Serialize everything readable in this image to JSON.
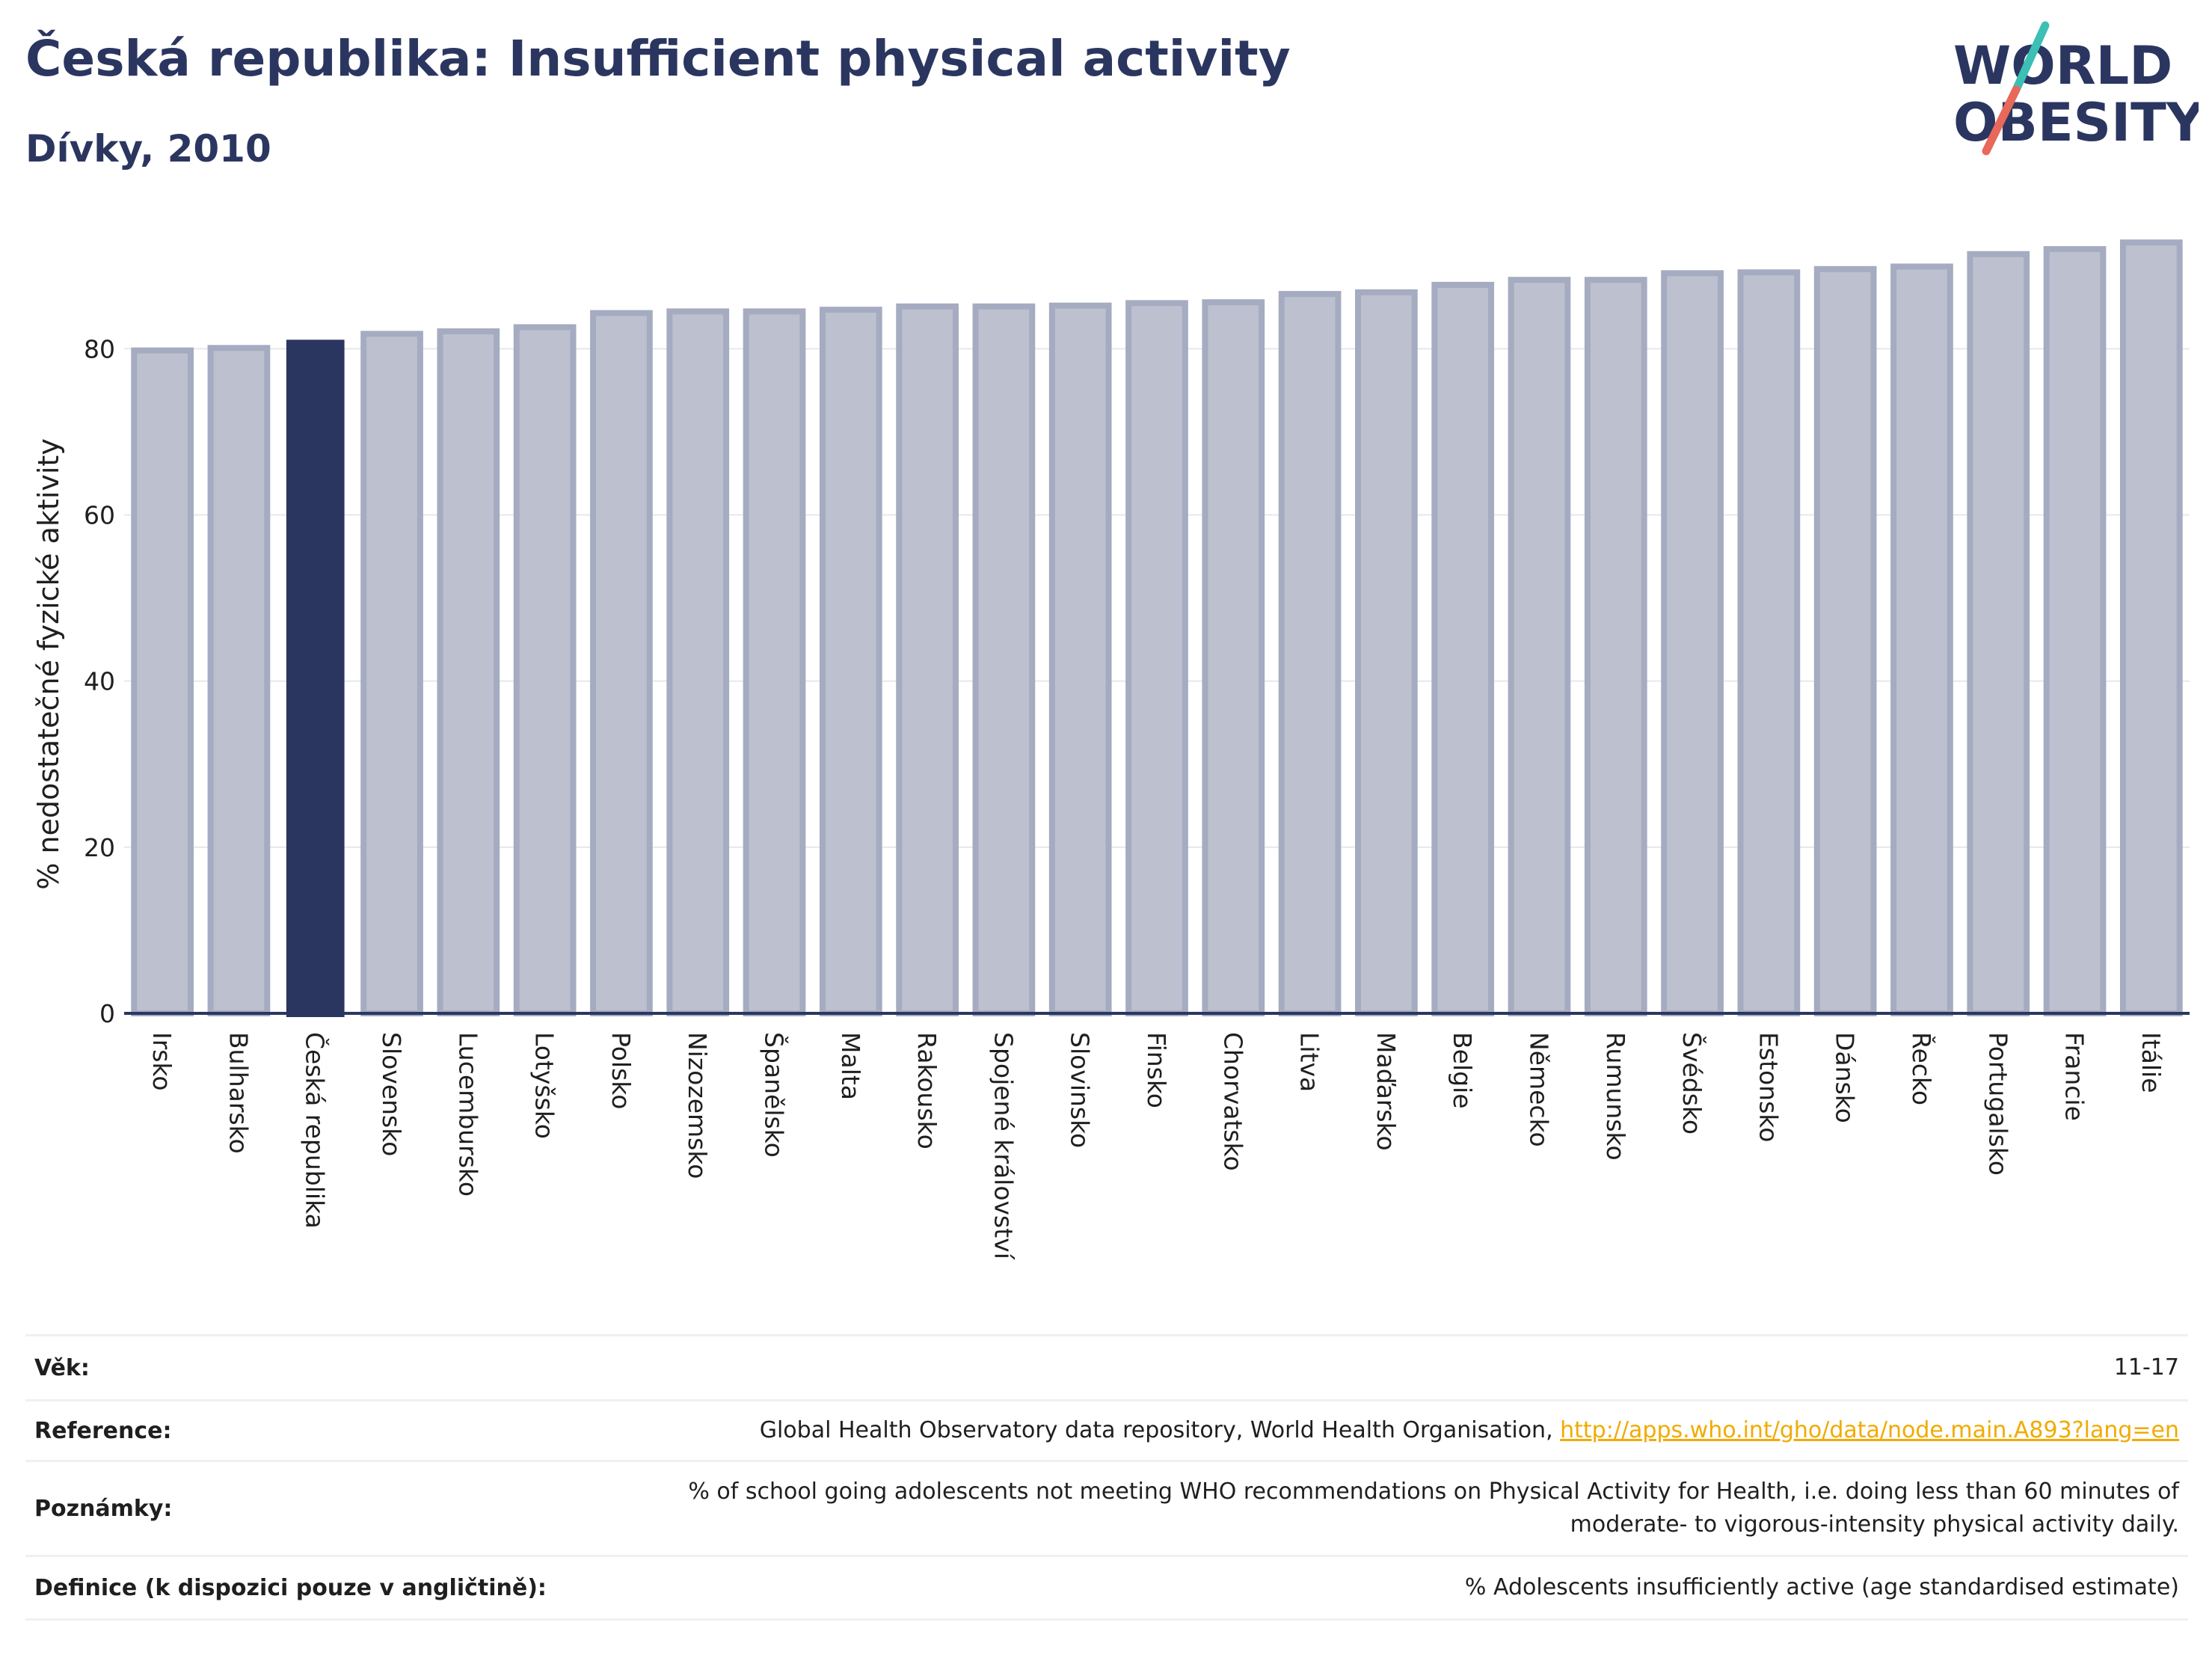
{
  "header": {
    "title": "Česká republika: Insufficient physical activity",
    "subtitle": "Dívky, 2010"
  },
  "logo": {
    "line1": "WORLD",
    "line2": "OBESITY"
  },
  "colors": {
    "navy": "#2b3660",
    "bar": "#bdc1cf",
    "bar_outline": "#a5abc0",
    "link": "#f0ab00",
    "logo_teal": "#3cbfb4",
    "logo_coral": "#e8685a"
  },
  "chart_data": {
    "type": "bar",
    "ylabel": "% nedostatečné fyzické aktivity",
    "ylim": [
      0,
      93
    ],
    "yticks": [
      0,
      20,
      40,
      60,
      80
    ],
    "grid": true,
    "highlight": "Česká republika",
    "categories": [
      "Irsko",
      "Bulharsko",
      "Česká republika",
      "Slovensko",
      "Lucembursko",
      "Lotyšsko",
      "Polsko",
      "Nizozemsko",
      "Španělsko",
      "Malta",
      "Rakousko",
      "Spojené království",
      "Slovinsko",
      "Finsko",
      "Chorvatsko",
      "Litva",
      "Maďarsko",
      "Belgie",
      "Německo",
      "Rumunsko",
      "Švédsko",
      "Estonsko",
      "Dánsko",
      "Řecko",
      "Portugalsko",
      "Francie",
      "Itálie"
    ],
    "values": [
      79.8,
      80.1,
      81.0,
      81.8,
      82.1,
      82.6,
      84.3,
      84.5,
      84.5,
      84.7,
      85.1,
      85.1,
      85.2,
      85.5,
      85.6,
      86.6,
      86.8,
      87.7,
      88.3,
      88.3,
      89.1,
      89.2,
      89.6,
      89.9,
      91.4,
      92.0,
      92.8
    ]
  },
  "info": {
    "rows": [
      {
        "label": "Věk:",
        "value": "11-17"
      },
      {
        "label": "Reference:",
        "value": "Global Health Observatory data repository, World Health Organisation, ",
        "link": "http://apps.who.int/gho/data/node.main.A893?lang=en"
      },
      {
        "label": "Poznámky:",
        "value": "% of school going adolescents not meeting WHO recommendations on Physical Activity for Health, i.e. doing less than 60 minutes of moderate- to vigorous-intensity physical activity daily."
      },
      {
        "label": "Definice (k dispozici pouze v angličtině):",
        "value": "% Adolescents insufficiently active (age standardised estimate)"
      }
    ]
  }
}
